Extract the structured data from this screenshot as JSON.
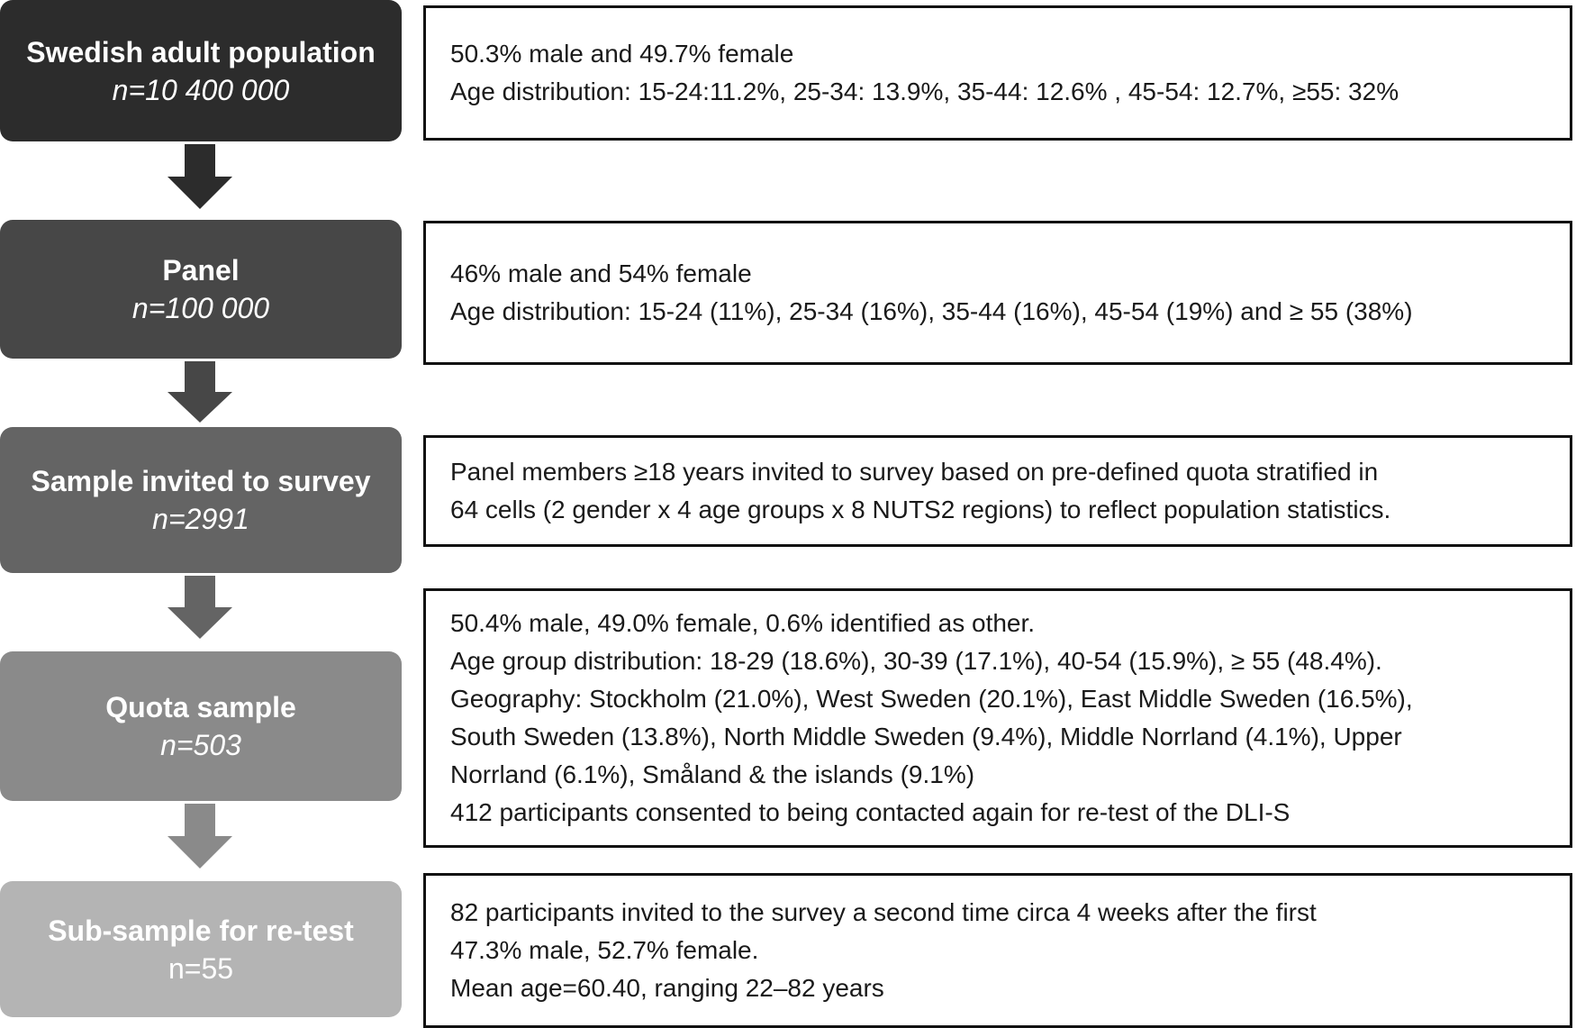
{
  "colors": {
    "stage_1": "#2c2c2c",
    "stage_2": "#474747",
    "stage_3": "#646464",
    "stage_4": "#8a8a8a",
    "stage_5": "#b4b4b4",
    "stage_text": "#ffffff",
    "info_border": "#111111"
  },
  "stages": [
    {
      "title": "Swedish adult population",
      "n": "n=10 400 000",
      "info": [
        "50.3% male and  49.7% female",
        "Age distribution: 15-24:11.2%, 25-34: 13.9%, 35-44: 12.6% , 45-54: 12.7%, ≥55: 32%"
      ]
    },
    {
      "title": "Panel",
      "n": "n=100 000",
      "info": [
        "46% male and 54% female",
        "Age distribution: 15-24 (11%), 25-34 (16%), 35-44 (16%), 45-54 (19%) and ≥ 55 (38%)"
      ]
    },
    {
      "title": "Sample invited to survey",
      "n": "n=2991",
      "info": [
        "Panel members ≥18 years invited to survey based on pre-defined quota stratified in",
        "64 cells (2 gender x 4 age groups x 8 NUTS2 regions) to reflect population statistics."
      ]
    },
    {
      "title": "Quota sample",
      "n": "n=503",
      "info": [
        "50.4% male, 49.0% female, 0.6% identified as other.",
        "Age group distribution: 18-29 (18.6%), 30-39 (17.1%), 40-54 (15.9%), ≥ 55 (48.4%).",
        "Geography: Stockholm (21.0%), West Sweden (20.1%), East Middle Sweden (16.5%),",
        "South Sweden (13.8%), North Middle Sweden (9.4%), Middle Norrland (4.1%), Upper",
        "Norrland (6.1%), Småland & the islands (9.1%)",
        "412 participants consented to being contacted again for re-test of the DLI-S"
      ]
    },
    {
      "title": "Sub-sample for re-test",
      "n": "n=55",
      "info": [
        "82 participants invited to the survey a second time circa 4 weeks after the first",
        "47.3% male, 52.7% female.",
        "Mean age=60.40, ranging 22–82 years"
      ]
    }
  ]
}
